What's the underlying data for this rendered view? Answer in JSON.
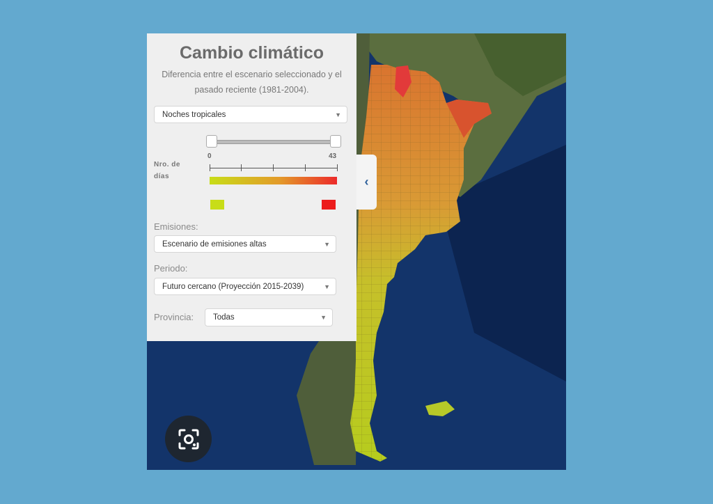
{
  "panel": {
    "title": "Cambio climático",
    "subtitle_line1": "Diferencia entre el escenario seleccionado y el",
    "subtitle_line2": "pasado reciente (1981-2004).",
    "variable_select": "Noches tropicales",
    "legend_label_line1": "Nro. de",
    "legend_label_line2": "días",
    "legend_min": "0",
    "legend_max": "43",
    "legend_colors": {
      "low": "#c8dd18",
      "high": "#ec2a2a"
    },
    "emisiones_label": "Emisiones:",
    "emisiones_select": "Escenario de emisiones altas",
    "periodo_label": "Periodo:",
    "periodo_select": "Futuro cercano (Proyección 2015-2039)",
    "provincia_label": "Provincia:",
    "provincia_select": "Todas"
  },
  "icons": {
    "dropdown": "chevron-down-icon",
    "collapse": "chevron-left-icon",
    "lens": "camera-search-icon"
  }
}
